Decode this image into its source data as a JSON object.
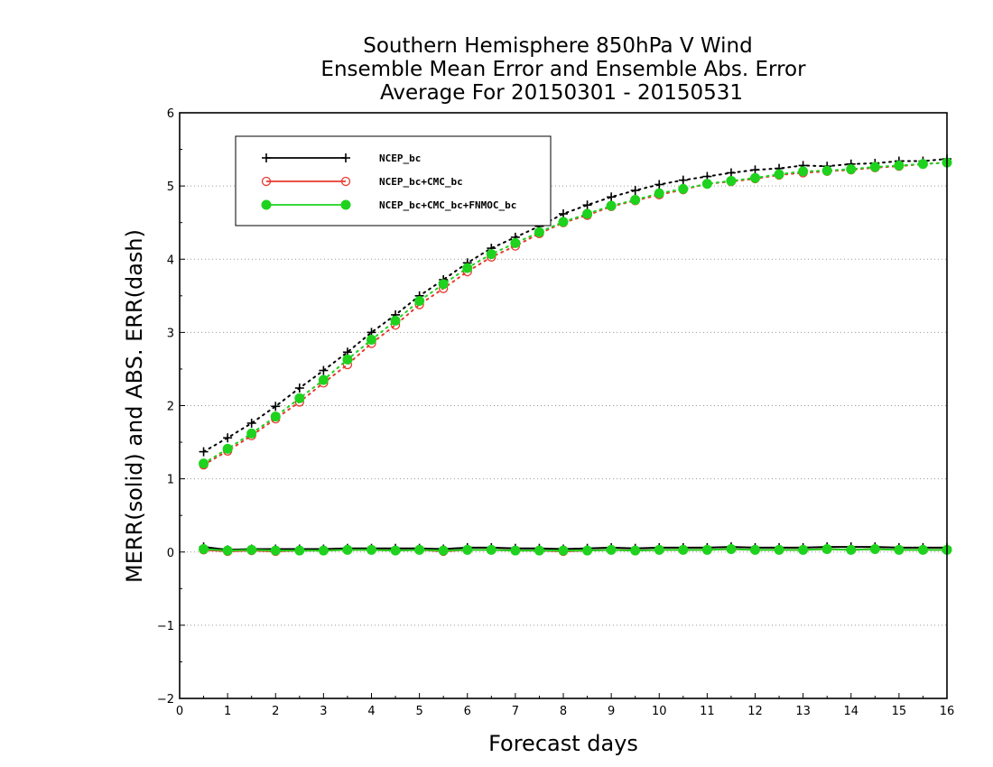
{
  "chart_data": {
    "type": "line",
    "title_lines": [
      "Southern Hemisphere 850hPa V Wind",
      "Ensemble Mean Error and Ensemble Abs. Error",
      "Average For 20150301 - 20150531"
    ],
    "xlabel": "Forecast days",
    "ylabel": "MERR(solid) and ABS. ERR(dash)",
    "xlim": [
      0,
      16
    ],
    "ylim": [
      -2,
      6
    ],
    "x_ticks": [
      "0",
      "1",
      "2",
      "3",
      "4",
      "5",
      "6",
      "7",
      "8",
      "9",
      "10",
      "11",
      "12",
      "13",
      "14",
      "15",
      "16"
    ],
    "y_ticks": [
      "-2",
      "-1",
      "0",
      "1",
      "2",
      "3",
      "4",
      "5",
      "6"
    ],
    "grid": "horizontal dotted",
    "legend_position": "top-left",
    "x": [
      0.5,
      1,
      1.5,
      2,
      2.5,
      3,
      3.5,
      4,
      4.5,
      5,
      5.5,
      6,
      6.5,
      7,
      7.5,
      8,
      8.5,
      9,
      9.5,
      10,
      10.5,
      11,
      11.5,
      12,
      12.5,
      13,
      13.5,
      14,
      14.5,
      15,
      15.5,
      16
    ],
    "series": [
      {
        "name": "NCEP_bc",
        "color": "#000000",
        "marker": "plus",
        "merr": [
          0.07,
          0.03,
          0.04,
          0.04,
          0.04,
          0.04,
          0.05,
          0.05,
          0.05,
          0.05,
          0.04,
          0.06,
          0.06,
          0.05,
          0.05,
          0.04,
          0.05,
          0.06,
          0.05,
          0.06,
          0.06,
          0.06,
          0.07,
          0.06,
          0.06,
          0.06,
          0.07,
          0.07,
          0.07,
          0.06,
          0.06,
          0.06
        ],
        "abs_err": [
          1.37,
          1.56,
          1.76,
          1.99,
          2.24,
          2.48,
          2.73,
          3.0,
          3.24,
          3.5,
          3.72,
          3.95,
          4.15,
          4.3,
          4.45,
          4.62,
          4.74,
          4.85,
          4.94,
          5.02,
          5.08,
          5.13,
          5.18,
          5.22,
          5.24,
          5.28,
          5.27,
          5.3,
          5.31,
          5.34,
          5.34,
          5.37
        ]
      },
      {
        "name": "NCEP_bc+CMC_bc",
        "color": "#e8382f",
        "marker": "open-circle",
        "merr": [
          0.03,
          0.01,
          0.02,
          0.01,
          0.02,
          0.02,
          0.03,
          0.03,
          0.02,
          0.03,
          0.01,
          0.03,
          0.03,
          0.02,
          0.02,
          0.01,
          0.02,
          0.03,
          0.02,
          0.03,
          0.03,
          0.03,
          0.04,
          0.03,
          0.03,
          0.03,
          0.04,
          0.03,
          0.04,
          0.03,
          0.03,
          0.03
        ],
        "abs_err": [
          1.19,
          1.38,
          1.59,
          1.82,
          2.05,
          2.31,
          2.56,
          2.85,
          3.1,
          3.38,
          3.6,
          3.83,
          4.03,
          4.18,
          4.35,
          4.5,
          4.6,
          4.72,
          4.8,
          4.88,
          4.95,
          5.03,
          5.06,
          5.1,
          5.15,
          5.18,
          5.2,
          5.22,
          5.25,
          5.27,
          5.3,
          5.32
        ]
      },
      {
        "name": "NCEP_bc+CMC_bc+FNMOC_bc",
        "color": "#1ed21e",
        "marker": "filled-circle",
        "merr": [
          0.04,
          0.02,
          0.03,
          0.02,
          0.02,
          0.02,
          0.03,
          0.03,
          0.02,
          0.03,
          0.02,
          0.03,
          0.03,
          0.02,
          0.02,
          0.02,
          0.02,
          0.03,
          0.02,
          0.03,
          0.03,
          0.03,
          0.04,
          0.03,
          0.03,
          0.03,
          0.04,
          0.03,
          0.04,
          0.03,
          0.03,
          0.03
        ],
        "abs_err": [
          1.21,
          1.41,
          1.62,
          1.85,
          2.1,
          2.35,
          2.63,
          2.9,
          3.16,
          3.43,
          3.66,
          3.88,
          4.07,
          4.22,
          4.37,
          4.51,
          4.62,
          4.73,
          4.81,
          4.9,
          4.96,
          5.03,
          5.07,
          5.11,
          5.16,
          5.2,
          5.21,
          5.23,
          5.26,
          5.28,
          5.3,
          5.32
        ]
      }
    ]
  }
}
